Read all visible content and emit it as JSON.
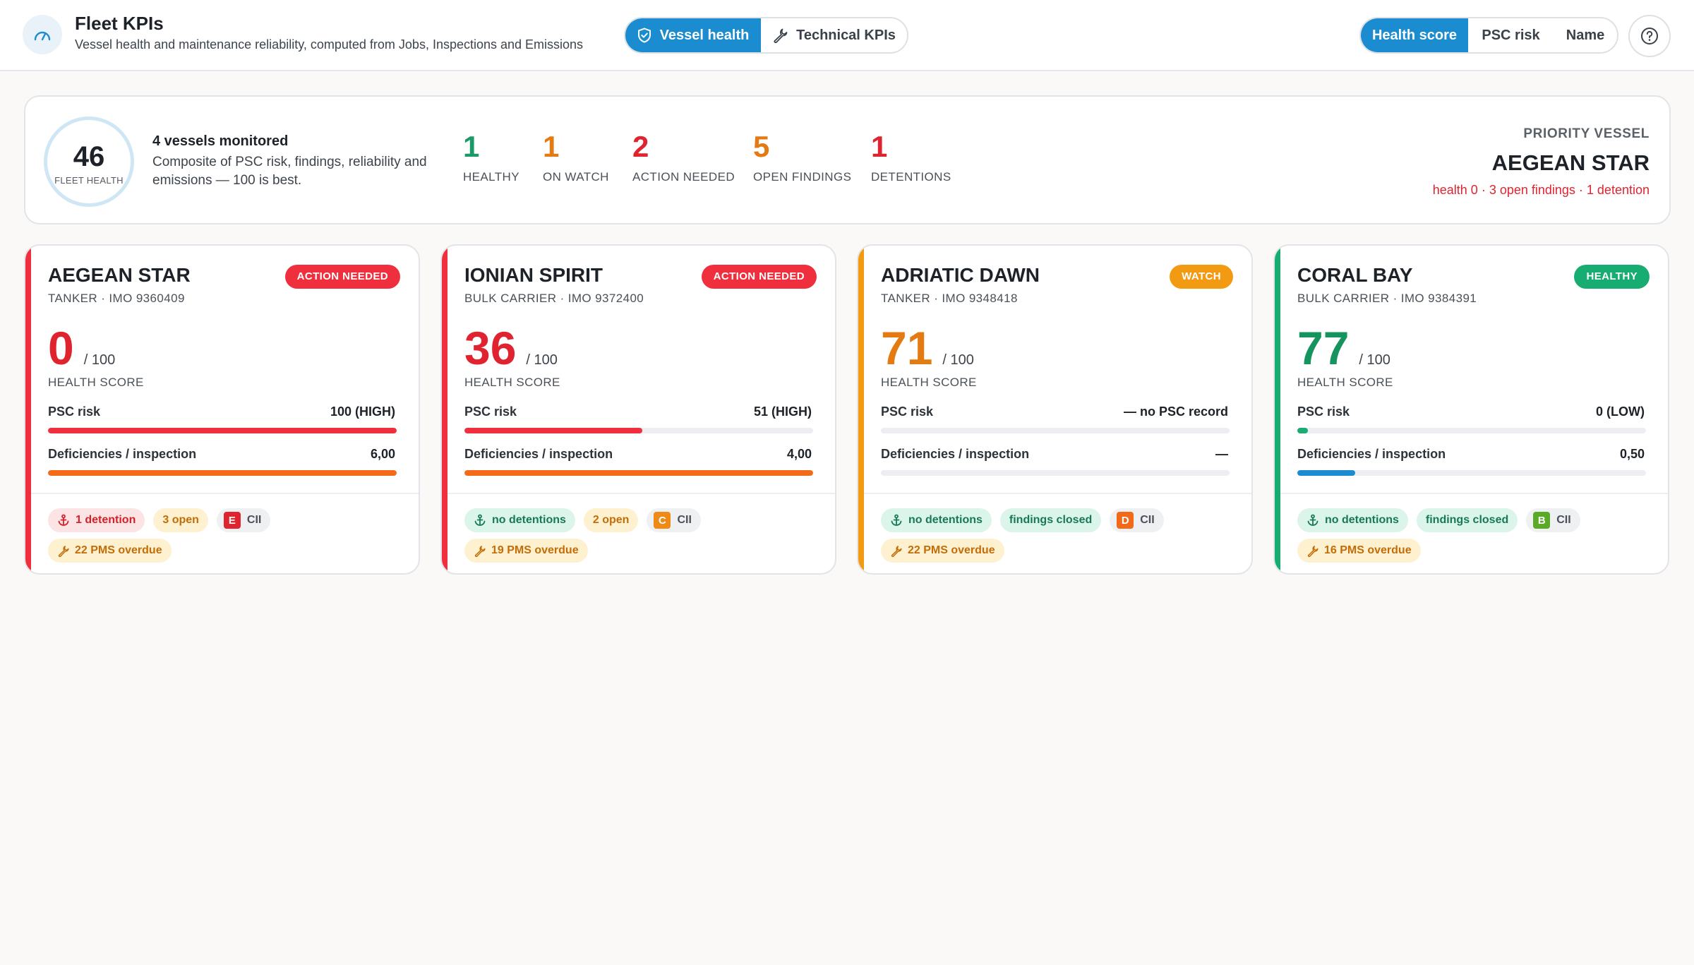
{
  "header": {
    "title": "Fleet KPIs",
    "subtitle": "Vessel health and maintenance reliability, computed from Jobs, Inspections and Emissions",
    "view_tabs": [
      "Vessel health",
      "Technical KPIs"
    ],
    "active_view": "Vessel health",
    "sort_tabs": [
      "Health score",
      "PSC risk",
      "Name"
    ],
    "active_sort": "Health score",
    "icons": {
      "app": "gauge-icon",
      "vessel_health": "shield-check-icon",
      "technical": "wrench-icon",
      "help": "question-icon"
    }
  },
  "summary": {
    "fleet_health": "46",
    "fleet_health_label": "FLEET HEALTH",
    "headline": "4 vessels monitored",
    "description": "Composite of PSC risk, findings, reliability and emissions — 100 is best.",
    "stats": [
      {
        "value": "1",
        "label": "HEALTHY",
        "color": "#1a9a64"
      },
      {
        "value": "1",
        "label": "ON WATCH",
        "color": "#e47b12"
      },
      {
        "value": "2",
        "label": "ACTION NEEDED",
        "color": "#e0242f"
      },
      {
        "value": "5",
        "label": "OPEN FINDINGS",
        "color": "#e47b12"
      },
      {
        "value": "1",
        "label": "DETENTIONS",
        "color": "#e0242f"
      }
    ],
    "priority": {
      "label": "PRIORITY VESSEL",
      "name": "AEGEAN STAR",
      "detail": "health 0 · 3 open findings · 1 detention"
    }
  },
  "vessels": [
    {
      "name": "AEGEAN STAR",
      "sub": "TANKER · IMO 9360409",
      "status": "ACTION NEEDED",
      "status_color": "#ef2f3d",
      "accent": "#ef2f3d",
      "score": "0",
      "score_color": "#e0242f",
      "score_max": "/ 100",
      "score_label": "HEALTH SCORE",
      "psc_label": "PSC risk",
      "psc_value": "100 (HIGH)",
      "psc_fraction": 1.0,
      "psc_color": "#ef2f3d",
      "def_label": "Deficiencies / inspection",
      "def_value": "6,00",
      "def_fraction": 1.0,
      "def_color": "#f56a17",
      "detention_chip": "1 detention",
      "detention_style": "red",
      "findings_chip": "3 open",
      "findings_style": "yellow",
      "cii_grade": "E",
      "cii_color": "#e0242f",
      "cii_label": "CII",
      "pms_chip": "22 PMS overdue"
    },
    {
      "name": "IONIAN SPIRIT",
      "sub": "BULK CARRIER · IMO 9372400",
      "status": "ACTION NEEDED",
      "status_color": "#ef2f3d",
      "accent": "#ef2f3d",
      "score": "36",
      "score_color": "#e0242f",
      "score_max": "/ 100",
      "score_label": "HEALTH SCORE",
      "psc_label": "PSC risk",
      "psc_value": "51 (HIGH)",
      "psc_fraction": 0.51,
      "psc_color": "#ef2f3d",
      "def_label": "Deficiencies / inspection",
      "def_value": "4,00",
      "def_fraction": 1.0,
      "def_color": "#f56a17",
      "detention_chip": "no detentions",
      "detention_style": "green",
      "findings_chip": "2 open",
      "findings_style": "yellow",
      "cii_grade": "C",
      "cii_color": "#f08a16",
      "cii_label": "CII",
      "pms_chip": "19 PMS overdue"
    },
    {
      "name": "ADRIATIC DAWN",
      "sub": "TANKER · IMO 9348418",
      "status": "WATCH",
      "status_color": "#f29b12",
      "accent": "#f29b12",
      "score": "71",
      "score_color": "#e47b12",
      "score_max": "/ 100",
      "score_label": "HEALTH SCORE",
      "psc_label": "PSC risk",
      "psc_value": "— no PSC record",
      "psc_fraction": 0,
      "psc_color": "#eceef1",
      "def_label": "Deficiencies / inspection",
      "def_value": "—",
      "def_fraction": 0,
      "def_color": "#eceef1",
      "detention_chip": "no detentions",
      "detention_style": "green",
      "findings_chip": "findings closed",
      "findings_style": "green",
      "cii_grade": "D",
      "cii_color": "#f06a1a",
      "cii_label": "CII",
      "pms_chip": "22 PMS overdue"
    },
    {
      "name": "CORAL BAY",
      "sub": "BULK CARRIER · IMO 9384391",
      "status": "HEALTHY",
      "status_color": "#17ac72",
      "accent": "#17ac72",
      "score": "77",
      "score_color": "#15945f",
      "score_max": "/ 100",
      "score_label": "HEALTH SCORE",
      "psc_label": "PSC risk",
      "psc_value": "0 (LOW)",
      "psc_fraction": 0.03,
      "psc_color": "#17ac72",
      "def_label": "Deficiencies / inspection",
      "def_value": "0,50",
      "def_fraction": 0.165,
      "def_color": "#1a8ccf",
      "detention_chip": "no detentions",
      "detention_style": "green",
      "findings_chip": "findings closed",
      "findings_style": "green",
      "cii_grade": "B",
      "cii_color": "#5aaa28",
      "cii_label": "CII",
      "pms_chip": "16 PMS overdue"
    }
  ]
}
